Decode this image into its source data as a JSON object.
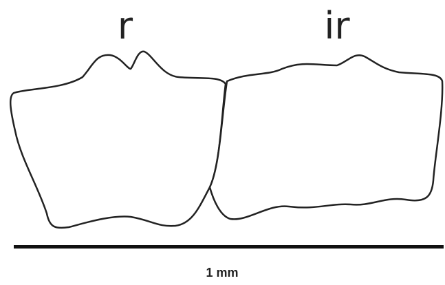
{
  "shapes": [
    {
      "label": "r"
    },
    {
      "label": "ir"
    }
  ],
  "scale_bar": {
    "label": "1 mm"
  }
}
